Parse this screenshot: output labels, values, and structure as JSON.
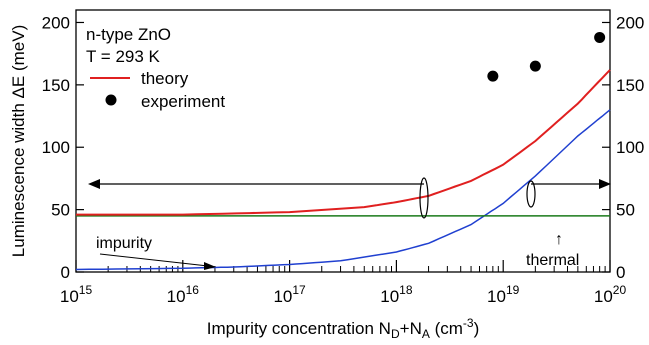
{
  "chart_data": {
    "type": "line",
    "xscale": "log",
    "xlim": [
      1000000000000000.0,
      1e+20
    ],
    "ylim": [
      0,
      210
    ],
    "y2lim": [
      0,
      210
    ],
    "xlabel": {
      "main": "Impurity concentration N",
      "sub1": "D",
      "mid": "+N",
      "sub2": "A",
      "unit_open": " (cm",
      "unit_sup": "-3",
      "unit_close": ")"
    },
    "ylabel": "Luminescence width ΔE (meV)",
    "x_ticks": [
      {
        "base": "10",
        "exp": "15",
        "value": 1000000000000000.0
      },
      {
        "base": "10",
        "exp": "16",
        "value": 1e+16
      },
      {
        "base": "10",
        "exp": "17",
        "value": 1e+17
      },
      {
        "base": "10",
        "exp": "18",
        "value": 1e+18
      },
      {
        "base": "10",
        "exp": "19",
        "value": 1e+19
      },
      {
        "base": "10",
        "exp": "20",
        "value": 1e+20
      }
    ],
    "y_ticks": [
      "0",
      "50",
      "100",
      "150",
      "200"
    ],
    "y_tick_values": [
      0,
      50,
      100,
      150,
      200
    ],
    "y2_ticks": [
      "0",
      "50",
      "100",
      "150",
      "200"
    ],
    "y2_tick_values": [
      0,
      50,
      100,
      150,
      200
    ],
    "legend": {
      "title_line1": "n-type ZnO",
      "title_line2": "T = 293 K",
      "theory": "theory",
      "experiment": "experiment",
      "placement": "top-left"
    },
    "series": [
      {
        "name": "theory",
        "color": "#e02020",
        "x": [
          1000000000000000.0,
          1e+16,
          1e+17,
          5e+17,
          1e+18,
          2e+18,
          5e+18,
          1e+19,
          2e+19,
          5e+19,
          1e+20
        ],
        "y": [
          46,
          46,
          48,
          52,
          56,
          61,
          73,
          86,
          105,
          135,
          162
        ]
      },
      {
        "name": "experiment",
        "marker": "dot",
        "color": "#000000",
        "x": [
          8e+18,
          2e+19,
          8e+19
        ],
        "y": [
          157,
          165,
          188
        ]
      }
    ],
    "components": [
      {
        "color": "#2040d0",
        "x": [
          1000000000000000.0,
          1e+16,
          3e+16,
          1e+17,
          3e+17,
          1e+18,
          2e+18,
          5e+18,
          1e+19,
          2e+19,
          5e+19,
          1e+20
        ],
        "y": [
          2,
          3,
          4,
          6,
          9,
          16,
          23,
          38,
          55,
          77,
          109,
          130
        ]
      },
      {
        "color": "#1a7a1a",
        "x": [
          1000000000000000.0,
          1e+20
        ],
        "y": [
          45,
          45
        ]
      }
    ],
    "annotations": {
      "impurity": "impurity",
      "thermal": "thermal",
      "thermal_arrow": "↑"
    }
  }
}
